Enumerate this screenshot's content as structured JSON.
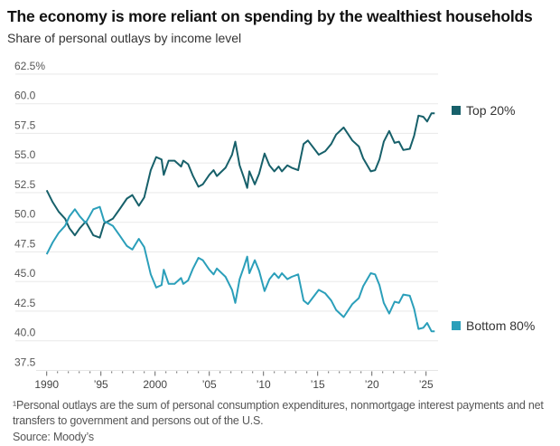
{
  "title": "The economy is more reliant on spending by the wealthiest households",
  "subtitle": "Share of personal outlays by income level",
  "footnote_line1": "¹Personal outlays are the sum of personal consumption expenditures, nonmortgage interest payments and net",
  "footnote_line2": "transfers to government and persons out of the U.S.",
  "source": "Source: Moody’s",
  "chart_data": {
    "type": "line",
    "title": "The economy is more reliant on spending by the wealthiest households",
    "subtitle": "Share of personal outlays by income level",
    "ylim": [
      37.5,
      62.5
    ],
    "xlim": [
      1990,
      2026
    ],
    "grid": true,
    "legend_placement": "right, inline at line ends",
    "y_ticks": [
      37.5,
      40.0,
      42.5,
      45.0,
      47.5,
      50.0,
      52.5,
      55.0,
      57.5,
      60.0,
      62.5
    ],
    "y_tick_labels": [
      "37.5",
      "40.0",
      "42.5",
      "45.0",
      "47.5",
      "50.0",
      "52.5",
      "55.0",
      "57.5",
      "60.0",
      "62.5%"
    ],
    "x_ticks": [
      1990,
      1995,
      2000,
      2005,
      2010,
      2015,
      2020,
      2025
    ],
    "x_tick_labels": [
      "1990",
      "’95",
      "2000",
      "’05",
      "’10",
      "’15",
      "’20",
      "’25"
    ],
    "x": [
      1990.0,
      1990.55,
      1991.1,
      1991.7,
      1992.1,
      1992.6,
      1993.05,
      1993.6,
      1994.0,
      1994.3,
      1994.9,
      1995.3,
      1996.1,
      1996.8,
      1997.4,
      1997.9,
      1998.5,
      1999.0,
      1999.6,
      2000.1,
      2000.6,
      2000.8,
      2001.25,
      2001.8,
      2002.4,
      2002.6,
      2003.05,
      2003.5,
      2004.0,
      2004.4,
      2005.0,
      2005.4,
      2005.7,
      2006.5,
      2007.1,
      2007.4,
      2007.8,
      2008.2,
      2008.5,
      2008.7,
      2009.2,
      2009.6,
      2010.1,
      2010.55,
      2011.0,
      2011.4,
      2011.7,
      2012.2,
      2012.6,
      2013.2,
      2013.7,
      2014.1,
      2015.1,
      2015.7,
      2016.25,
      2016.7,
      2017.4,
      2018.2,
      2018.8,
      2019.2,
      2019.9,
      2020.3,
      2020.7,
      2021.1,
      2021.6,
      2022.1,
      2022.5,
      2022.9,
      2023.5,
      2023.9,
      2024.3,
      2024.75,
      2025.1,
      2025.5,
      2025.8
    ],
    "series": [
      {
        "name": "Top 20%",
        "color": "#17606a",
        "values": [
          52.7,
          51.7,
          50.9,
          50.3,
          49.5,
          48.9,
          49.5,
          50.05,
          49.4,
          48.9,
          48.7,
          49.9,
          50.3,
          51.2,
          52.0,
          52.3,
          51.4,
          52.1,
          54.4,
          55.5,
          55.3,
          54.0,
          55.2,
          55.2,
          54.7,
          55.2,
          54.9,
          53.9,
          53.0,
          53.2,
          54.0,
          54.4,
          53.9,
          54.6,
          55.7,
          56.8,
          54.8,
          53.75,
          52.9,
          54.3,
          53.2,
          54.1,
          55.8,
          54.8,
          54.3,
          54.7,
          54.3,
          54.8,
          54.6,
          54.4,
          56.6,
          56.9,
          55.7,
          56.0,
          56.6,
          57.4,
          58.0,
          56.9,
          56.4,
          55.4,
          54.3,
          54.4,
          55.3,
          56.8,
          57.7,
          56.7,
          56.8,
          56.1,
          56.2,
          57.3,
          59.0,
          58.9,
          58.5,
          59.2,
          59.2
        ]
      },
      {
        "name": "Bottom 80%",
        "color": "#2b9fba",
        "values": [
          47.3,
          48.3,
          49.1,
          49.7,
          50.5,
          51.1,
          50.5,
          49.95,
          50.6,
          51.1,
          51.3,
          50.1,
          49.7,
          48.8,
          48.0,
          47.7,
          48.6,
          47.9,
          45.6,
          44.5,
          44.7,
          46.0,
          44.8,
          44.8,
          45.3,
          44.8,
          45.1,
          46.1,
          47.0,
          46.8,
          46.0,
          45.6,
          46.1,
          45.4,
          44.3,
          43.2,
          45.2,
          46.25,
          47.1,
          45.7,
          46.8,
          45.9,
          44.2,
          45.2,
          45.7,
          45.3,
          45.7,
          45.2,
          45.4,
          45.6,
          43.4,
          43.1,
          44.3,
          44.0,
          43.4,
          42.6,
          42.0,
          43.1,
          43.6,
          44.6,
          45.7,
          45.6,
          44.7,
          43.2,
          42.3,
          43.3,
          43.2,
          43.9,
          43.8,
          42.7,
          41.0,
          41.1,
          41.5,
          40.8,
          40.8
        ]
      }
    ]
  }
}
